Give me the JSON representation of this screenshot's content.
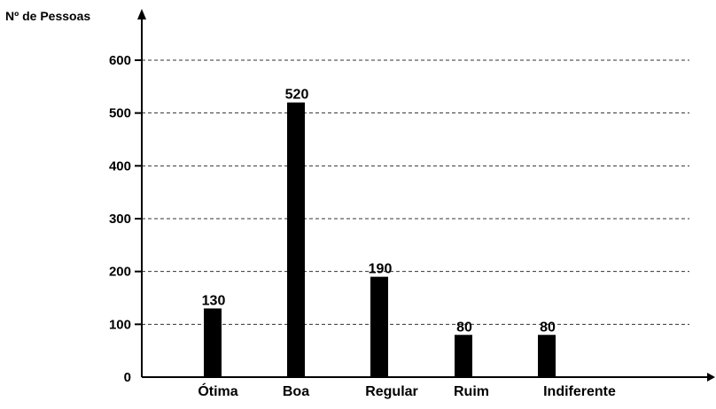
{
  "chart_data": {
    "type": "bar",
    "title": "",
    "ylabel": "Nº de Pessoas",
    "xlabel": "",
    "categories": [
      "Ótima",
      "Boa",
      "Regular",
      "Ruim",
      "Indiferente"
    ],
    "values": [
      130,
      520,
      190,
      80,
      80
    ],
    "yticks": [
      0,
      100,
      200,
      300,
      400,
      500,
      600
    ],
    "ylim": [
      0,
      600
    ],
    "grid": true,
    "grid_style": "dashed",
    "legend": "none",
    "bar_color": "#000000"
  }
}
